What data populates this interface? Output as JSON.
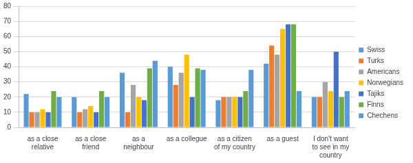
{
  "chart_data": {
    "type": "bar",
    "categories": [
      "as a close relative",
      "as a close friend",
      "as a neighbour",
      "as a collegue",
      "as a citizen of my country",
      "as a guest",
      "I don't want to see in my country"
    ],
    "series": [
      {
        "name": "Swiss",
        "color": "#5b9bd5",
        "values": [
          22,
          20,
          36,
          40,
          18,
          42,
          20
        ]
      },
      {
        "name": "Turks",
        "color": "#ed7d31",
        "values": [
          10,
          10,
          10,
          28,
          20,
          54,
          20
        ]
      },
      {
        "name": "Americans",
        "color": "#a5a5a5",
        "values": [
          10,
          12,
          28,
          36,
          20,
          48,
          30
        ]
      },
      {
        "name": "Norwegians",
        "color": "#ffc000",
        "values": [
          12,
          14,
          20,
          48,
          20,
          65,
          24
        ]
      },
      {
        "name": "Tajiks",
        "color": "#4472c4",
        "values": [
          10,
          10,
          18,
          20,
          20,
          68,
          50
        ]
      },
      {
        "name": "Finns",
        "color": "#70ad47",
        "values": [
          24,
          24,
          39,
          39,
          24,
          68,
          20
        ]
      },
      {
        "name": "Chechens",
        "color": "#5b9bd5",
        "values": [
          20,
          20,
          44,
          38,
          38,
          24,
          24
        ]
      }
    ],
    "ylim": [
      0,
      80
    ],
    "yticks": [
      0,
      10,
      20,
      30,
      40,
      50,
      60,
      70,
      80
    ],
    "grid": true,
    "legend": "right"
  }
}
